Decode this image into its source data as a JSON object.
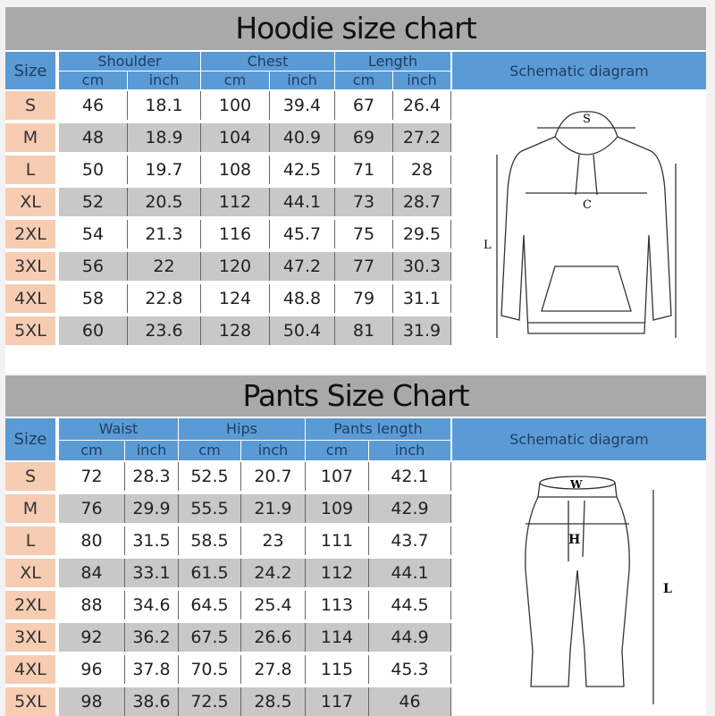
{
  "hoodie": {
    "title": "Hoodie size chart",
    "size_label": "Size",
    "groups": [
      "Shoulder",
      "Chest",
      "Length"
    ],
    "units": [
      "cm",
      "inch",
      "cm",
      "inch",
      "cm",
      "inch"
    ],
    "schematic_label": "Schematic diagram",
    "diagram_labels": {
      "shoulder": "S",
      "chest": "C",
      "length": "L"
    },
    "rows": [
      [
        "S",
        "46",
        "18.1",
        "100",
        "39.4",
        "67",
        "26.4"
      ],
      [
        "M",
        "48",
        "18.9",
        "104",
        "40.9",
        "69",
        "27.2"
      ],
      [
        "L",
        "50",
        "19.7",
        "108",
        "42.5",
        "71",
        "28"
      ],
      [
        "XL",
        "52",
        "20.5",
        "112",
        "44.1",
        "73",
        "28.7"
      ],
      [
        "2XL",
        "54",
        "21.3",
        "116",
        "45.7",
        "75",
        "29.5"
      ],
      [
        "3XL",
        "56",
        "22",
        "120",
        "47.2",
        "77",
        "30.3"
      ],
      [
        "4XL",
        "58",
        "22.8",
        "124",
        "48.8",
        "79",
        "31.1"
      ],
      [
        "5XL",
        "60",
        "23.6",
        "128",
        "50.4",
        "81",
        "31.9"
      ]
    ]
  },
  "pants": {
    "title": "Pants Size Chart",
    "size_label": "Size",
    "groups": [
      "Waist",
      "Hips",
      "Pants length"
    ],
    "units": [
      "cm",
      "inch",
      "cm",
      "inch",
      "cm",
      "inch"
    ],
    "schematic_label": "Schematic diagram",
    "diagram_labels": {
      "waist": "W",
      "hips": "H",
      "length": "L"
    },
    "rows": [
      [
        "S",
        "72",
        "28.3",
        "52.5",
        "20.7",
        "107",
        "42.1"
      ],
      [
        "M",
        "76",
        "29.9",
        "55.5",
        "21.9",
        "109",
        "42.9"
      ],
      [
        "L",
        "80",
        "31.5",
        "58.5",
        "23",
        "111",
        "43.7"
      ],
      [
        "XL",
        "84",
        "33.1",
        "61.5",
        "24.2",
        "112",
        "44.1"
      ],
      [
        "2XL",
        "88",
        "34.6",
        "64.5",
        "25.4",
        "113",
        "44.5"
      ],
      [
        "3XL",
        "92",
        "36.2",
        "67.5",
        "26.6",
        "114",
        "44.9"
      ],
      [
        "4XL",
        "96",
        "37.8",
        "70.5",
        "27.8",
        "115",
        "45.3"
      ],
      [
        "5XL",
        "98",
        "38.6",
        "72.5",
        "28.5",
        "117",
        "46"
      ]
    ]
  },
  "colors": {
    "header": "#5b9bd5",
    "title_band": "#a9a9a9",
    "size_cell": "#f6cdb2",
    "alt_row": "#c8c8c8"
  }
}
